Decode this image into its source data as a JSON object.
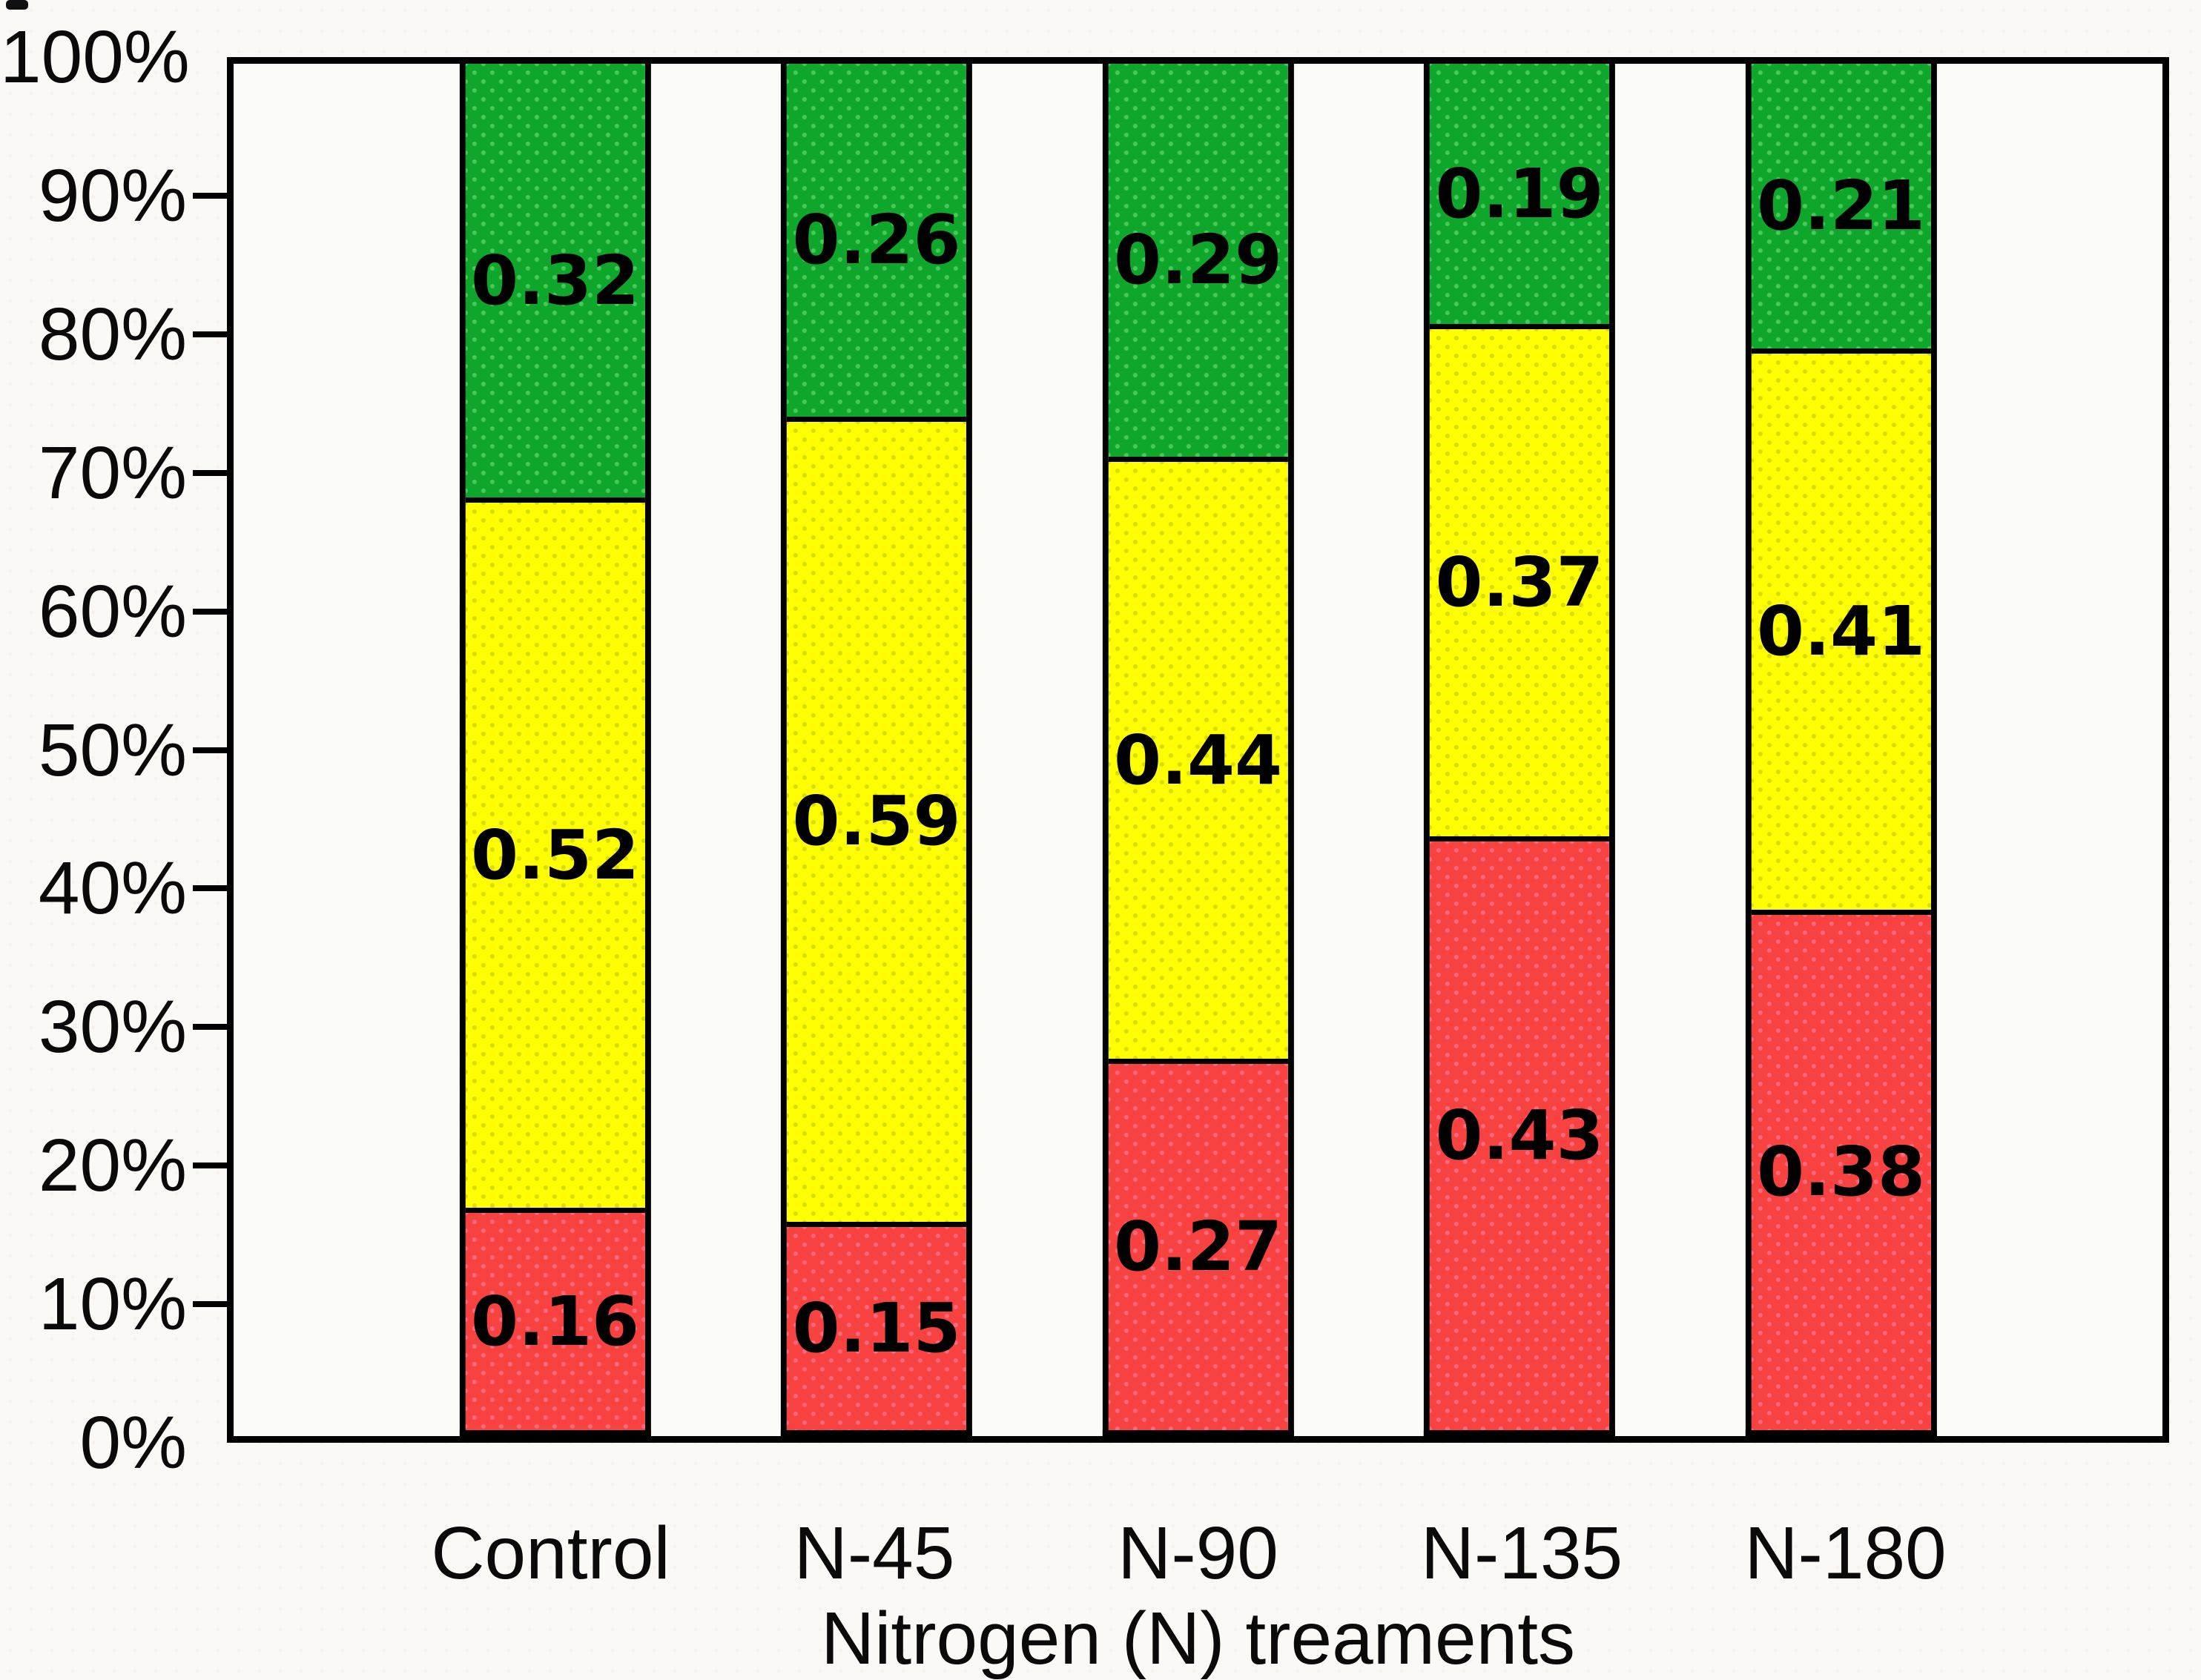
{
  "chart_data": {
    "type": "bar",
    "stacked": "percent",
    "title": "",
    "xlabel": "Nitrogen (N) treaments",
    "ylabel": "",
    "categories": [
      "Control",
      "N-45",
      "N-90",
      "N-135",
      "N-180"
    ],
    "series": [
      {
        "name": "bottom-red",
        "color": "#F8423F",
        "values": [
          0.16,
          0.15,
          0.27,
          0.43,
          0.38
        ],
        "labels": [
          "0.16",
          "0.15",
          "0.27",
          "0.43",
          "0.38"
        ]
      },
      {
        "name": "middle-yellow",
        "color": "#FEFE00",
        "values": [
          0.52,
          0.59,
          0.44,
          0.37,
          0.41
        ],
        "labels": [
          "0.52",
          "0.59",
          "0.44",
          "0.37",
          "0.41"
        ]
      },
      {
        "name": "top-green",
        "color": "#0EA72B",
        "values": [
          0.32,
          0.26,
          0.29,
          0.19,
          0.21
        ],
        "labels": [
          "0.32",
          "0.26",
          "0.29",
          "0.19",
          "0.21"
        ]
      }
    ],
    "yticks": [
      "0%",
      "10%",
      "20%",
      "30%",
      "40%",
      "50%",
      "60%",
      "70%",
      "80%",
      "90%",
      "100%"
    ],
    "ylim": [
      0,
      1
    ],
    "grid": false,
    "legend": "none",
    "bar_outline_color": "#000000",
    "value_label_color": "#000000"
  }
}
